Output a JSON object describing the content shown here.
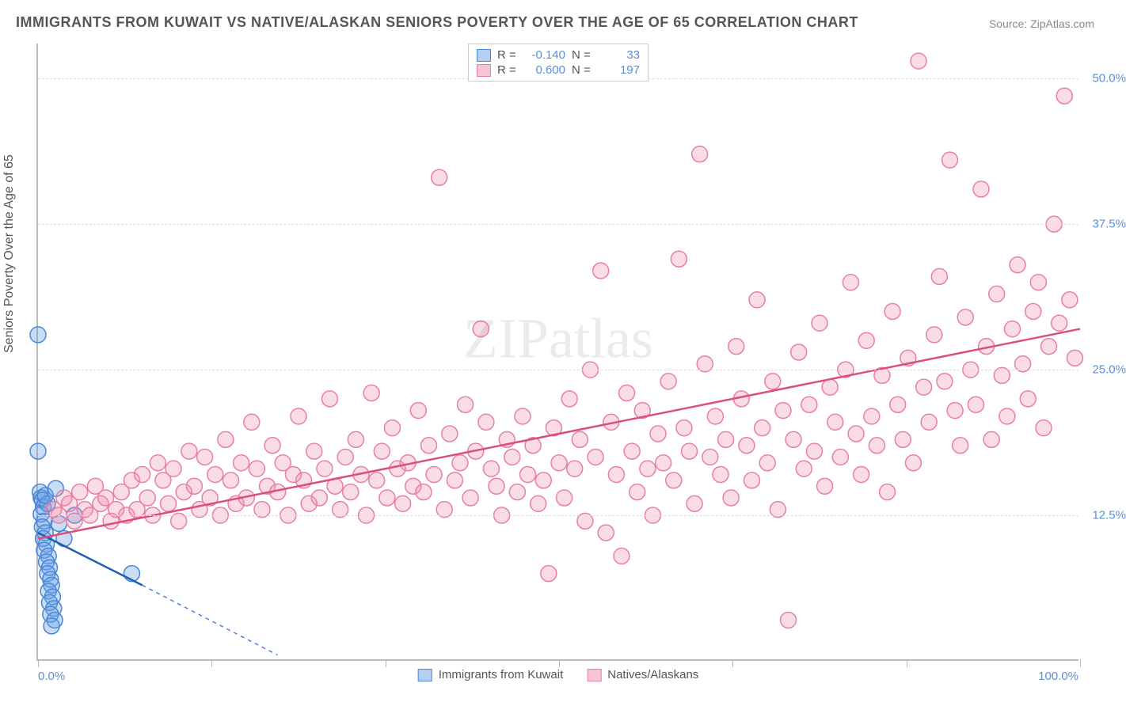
{
  "title": "IMMIGRANTS FROM KUWAIT VS NATIVE/ALASKAN SENIORS POVERTY OVER THE AGE OF 65 CORRELATION CHART",
  "source": "Source: ZipAtlas.com",
  "ylabel": "Seniors Poverty Over the Age of 65",
  "watermark": "ZIPatlas",
  "chart": {
    "type": "scatter",
    "background_color": "#ffffff",
    "grid_color": "#dddddd",
    "axis_color": "#bbbbbb",
    "tick_label_color": "#5b8fd6",
    "xlim": [
      0,
      100
    ],
    "ylim": [
      0,
      53
    ],
    "xticks": [
      0,
      16.67,
      33.33,
      50,
      66.67,
      83.33,
      100
    ],
    "xtick_labels": {
      "0": "0.0%",
      "100": "100.0%"
    },
    "yticks": [
      12.5,
      25.0,
      37.5,
      50.0
    ],
    "ytick_labels": [
      "12.5%",
      "25.0%",
      "37.5%",
      "50.0%"
    ],
    "marker_radius": 10,
    "marker_stroke_width": 1.5,
    "line_width": 2.5,
    "series": [
      {
        "name": "Immigrants from Kuwait",
        "fill_color": "rgba(100,160,230,0.35)",
        "stroke_color": "#4a85d6",
        "line_color": "#1f5fb0",
        "swatch_fill": "#b4d0f0",
        "swatch_border": "#4a85d6",
        "R": "-0.140",
        "N": "33",
        "trend": {
          "x1": 0,
          "y1": 11.0,
          "x2": 10,
          "y2": 6.5,
          "ext_x2": 23,
          "ext_y2": 0.5
        },
        "points": [
          [
            0.0,
            28.0
          ],
          [
            0.0,
            18.0
          ],
          [
            0.2,
            14.5
          ],
          [
            0.3,
            14.0
          ],
          [
            0.4,
            13.8
          ],
          [
            0.5,
            13.2
          ],
          [
            0.3,
            12.6
          ],
          [
            0.6,
            12.0
          ],
          [
            0.4,
            11.5
          ],
          [
            0.7,
            11.0
          ],
          [
            0.5,
            10.5
          ],
          [
            0.8,
            10.0
          ],
          [
            0.6,
            9.5
          ],
          [
            0.9,
            13.5
          ],
          [
            0.7,
            14.2
          ],
          [
            1.0,
            9.0
          ],
          [
            0.8,
            8.5
          ],
          [
            1.1,
            8.0
          ],
          [
            0.9,
            7.5
          ],
          [
            1.2,
            7.0
          ],
          [
            1.3,
            6.5
          ],
          [
            1.0,
            6.0
          ],
          [
            1.4,
            5.5
          ],
          [
            1.1,
            5.0
          ],
          [
            1.5,
            4.5
          ],
          [
            1.2,
            4.0
          ],
          [
            1.6,
            3.5
          ],
          [
            1.3,
            3.0
          ],
          [
            1.7,
            14.8
          ],
          [
            2.0,
            11.8
          ],
          [
            2.5,
            10.5
          ],
          [
            3.5,
            12.5
          ],
          [
            9.0,
            7.5
          ]
        ]
      },
      {
        "name": "Natives/Alaskans",
        "fill_color": "rgba(240,140,170,0.30)",
        "stroke_color": "#e87fa5",
        "line_color": "#d94f7e",
        "swatch_fill": "#f7c4d5",
        "swatch_border": "#e87fa5",
        "R": "0.600",
        "N": "197",
        "trend": {
          "x1": 0,
          "y1": 10.5,
          "x2": 100,
          "y2": 28.5
        },
        "points": [
          [
            1.5,
            13.0
          ],
          [
            2.0,
            12.5
          ],
          [
            2.5,
            14.0
          ],
          [
            3.0,
            13.5
          ],
          [
            3.5,
            12.0
          ],
          [
            4.0,
            14.5
          ],
          [
            4.5,
            13.0
          ],
          [
            5.0,
            12.5
          ],
          [
            5.5,
            15.0
          ],
          [
            6.0,
            13.5
          ],
          [
            6.5,
            14.0
          ],
          [
            7.0,
            12.0
          ],
          [
            7.5,
            13.0
          ],
          [
            8.0,
            14.5
          ],
          [
            8.5,
            12.5
          ],
          [
            9.0,
            15.5
          ],
          [
            9.5,
            13.0
          ],
          [
            10.0,
            16.0
          ],
          [
            10.5,
            14.0
          ],
          [
            11.0,
            12.5
          ],
          [
            11.5,
            17.0
          ],
          [
            12.0,
            15.5
          ],
          [
            12.5,
            13.5
          ],
          [
            13.0,
            16.5
          ],
          [
            13.5,
            12.0
          ],
          [
            14.0,
            14.5
          ],
          [
            14.5,
            18.0
          ],
          [
            15.0,
            15.0
          ],
          [
            15.5,
            13.0
          ],
          [
            16.0,
            17.5
          ],
          [
            16.5,
            14.0
          ],
          [
            17.0,
            16.0
          ],
          [
            17.5,
            12.5
          ],
          [
            18.0,
            19.0
          ],
          [
            18.5,
            15.5
          ],
          [
            19.0,
            13.5
          ],
          [
            19.5,
            17.0
          ],
          [
            20.0,
            14.0
          ],
          [
            20.5,
            20.5
          ],
          [
            21.0,
            16.5
          ],
          [
            21.5,
            13.0
          ],
          [
            22.0,
            15.0
          ],
          [
            22.5,
            18.5
          ],
          [
            23.0,
            14.5
          ],
          [
            23.5,
            17.0
          ],
          [
            24.0,
            12.5
          ],
          [
            24.5,
            16.0
          ],
          [
            25.0,
            21.0
          ],
          [
            25.5,
            15.5
          ],
          [
            26.0,
            13.5
          ],
          [
            26.5,
            18.0
          ],
          [
            27.0,
            14.0
          ],
          [
            27.5,
            16.5
          ],
          [
            28.0,
            22.5
          ],
          [
            28.5,
            15.0
          ],
          [
            29.0,
            13.0
          ],
          [
            29.5,
            17.5
          ],
          [
            30.0,
            14.5
          ],
          [
            30.5,
            19.0
          ],
          [
            31.0,
            16.0
          ],
          [
            31.5,
            12.5
          ],
          [
            32.0,
            23.0
          ],
          [
            32.5,
            15.5
          ],
          [
            33.0,
            18.0
          ],
          [
            33.5,
            14.0
          ],
          [
            34.0,
            20.0
          ],
          [
            34.5,
            16.5
          ],
          [
            35.0,
            13.5
          ],
          [
            35.5,
            17.0
          ],
          [
            36.0,
            15.0
          ],
          [
            36.5,
            21.5
          ],
          [
            37.0,
            14.5
          ],
          [
            37.5,
            18.5
          ],
          [
            38.0,
            16.0
          ],
          [
            38.5,
            41.5
          ],
          [
            39.0,
            13.0
          ],
          [
            39.5,
            19.5
          ],
          [
            40.0,
            15.5
          ],
          [
            40.5,
            17.0
          ],
          [
            41.0,
            22.0
          ],
          [
            41.5,
            14.0
          ],
          [
            42.0,
            18.0
          ],
          [
            42.5,
            28.5
          ],
          [
            43.0,
            20.5
          ],
          [
            43.5,
            16.5
          ],
          [
            44.0,
            15.0
          ],
          [
            44.5,
            12.5
          ],
          [
            45.0,
            19.0
          ],
          [
            45.5,
            17.5
          ],
          [
            46.0,
            14.5
          ],
          [
            46.5,
            21.0
          ],
          [
            47.0,
            16.0
          ],
          [
            47.5,
            18.5
          ],
          [
            48.0,
            13.5
          ],
          [
            48.5,
            15.5
          ],
          [
            49.0,
            7.5
          ],
          [
            49.5,
            20.0
          ],
          [
            50.0,
            17.0
          ],
          [
            50.5,
            14.0
          ],
          [
            51.0,
            22.5
          ],
          [
            51.5,
            16.5
          ],
          [
            52.0,
            19.0
          ],
          [
            52.5,
            12.0
          ],
          [
            53.0,
            25.0
          ],
          [
            53.5,
            17.5
          ],
          [
            54.0,
            33.5
          ],
          [
            54.5,
            11.0
          ],
          [
            55.0,
            20.5
          ],
          [
            55.5,
            16.0
          ],
          [
            56.0,
            9.0
          ],
          [
            56.5,
            23.0
          ],
          [
            57.0,
            18.0
          ],
          [
            57.5,
            14.5
          ],
          [
            58.0,
            21.5
          ],
          [
            58.5,
            16.5
          ],
          [
            59.0,
            12.5
          ],
          [
            59.5,
            19.5
          ],
          [
            60.0,
            17.0
          ],
          [
            60.5,
            24.0
          ],
          [
            61.0,
            15.5
          ],
          [
            61.5,
            34.5
          ],
          [
            62.0,
            20.0
          ],
          [
            62.5,
            18.0
          ],
          [
            63.0,
            13.5
          ],
          [
            63.5,
            43.5
          ],
          [
            64.0,
            25.5
          ],
          [
            64.5,
            17.5
          ],
          [
            65.0,
            21.0
          ],
          [
            65.5,
            16.0
          ],
          [
            66.0,
            19.0
          ],
          [
            66.5,
            14.0
          ],
          [
            67.0,
            27.0
          ],
          [
            67.5,
            22.5
          ],
          [
            68.0,
            18.5
          ],
          [
            68.5,
            15.5
          ],
          [
            69.0,
            31.0
          ],
          [
            69.5,
            20.0
          ],
          [
            70.0,
            17.0
          ],
          [
            70.5,
            24.0
          ],
          [
            71.0,
            13.0
          ],
          [
            71.5,
            21.5
          ],
          [
            72.0,
            3.5
          ],
          [
            72.5,
            19.0
          ],
          [
            73.0,
            26.5
          ],
          [
            73.5,
            16.5
          ],
          [
            74.0,
            22.0
          ],
          [
            74.5,
            18.0
          ],
          [
            75.0,
            29.0
          ],
          [
            75.5,
            15.0
          ],
          [
            76.0,
            23.5
          ],
          [
            76.5,
            20.5
          ],
          [
            77.0,
            17.5
          ],
          [
            77.5,
            25.0
          ],
          [
            78.0,
            32.5
          ],
          [
            78.5,
            19.5
          ],
          [
            79.0,
            16.0
          ],
          [
            79.5,
            27.5
          ],
          [
            80.0,
            21.0
          ],
          [
            80.5,
            18.5
          ],
          [
            81.0,
            24.5
          ],
          [
            81.5,
            14.5
          ],
          [
            82.0,
            30.0
          ],
          [
            82.5,
            22.0
          ],
          [
            83.0,
            19.0
          ],
          [
            83.5,
            26.0
          ],
          [
            84.0,
            17.0
          ],
          [
            84.5,
            51.5
          ],
          [
            85.0,
            23.5
          ],
          [
            85.5,
            20.5
          ],
          [
            86.0,
            28.0
          ],
          [
            86.5,
            33.0
          ],
          [
            87.0,
            24.0
          ],
          [
            87.5,
            43.0
          ],
          [
            88.0,
            21.5
          ],
          [
            88.5,
            18.5
          ],
          [
            89.0,
            29.5
          ],
          [
            89.5,
            25.0
          ],
          [
            90.0,
            22.0
          ],
          [
            90.5,
            40.5
          ],
          [
            91.0,
            27.0
          ],
          [
            91.5,
            19.0
          ],
          [
            92.0,
            31.5
          ],
          [
            92.5,
            24.5
          ],
          [
            93.0,
            21.0
          ],
          [
            93.5,
            28.5
          ],
          [
            94.0,
            34.0
          ],
          [
            94.5,
            25.5
          ],
          [
            95.0,
            22.5
          ],
          [
            95.5,
            30.0
          ],
          [
            96.0,
            32.5
          ],
          [
            96.5,
            20.0
          ],
          [
            97.0,
            27.0
          ],
          [
            97.5,
            37.5
          ],
          [
            98.0,
            29.0
          ],
          [
            98.5,
            48.5
          ],
          [
            99.0,
            31.0
          ],
          [
            99.5,
            26.0
          ]
        ]
      }
    ]
  },
  "legend_bottom": [
    {
      "label": "Immigrants from Kuwait"
    },
    {
      "label": "Natives/Alaskans"
    }
  ]
}
